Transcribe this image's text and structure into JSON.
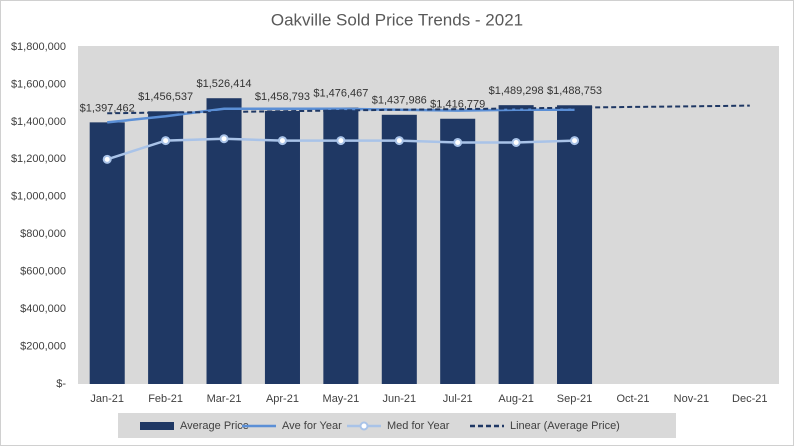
{
  "chart_data": {
    "type": "bar",
    "title": "Oakville Sold Price Trends - 2021",
    "categories": [
      "Jan-21",
      "Feb-21",
      "Mar-21",
      "Apr-21",
      "May-21",
      "Jun-21",
      "Jul-21",
      "Aug-21",
      "Sep-21",
      "Oct-21",
      "Nov-21",
      "Dec-21"
    ],
    "series": [
      {
        "name": "Average Price",
        "type": "bar",
        "color": "#1f3864",
        "values": [
          1397462,
          1456537,
          1526414,
          1458793,
          1476467,
          1437986,
          1416779,
          1489298,
          1488753,
          null,
          null,
          null
        ],
        "value_labels": [
          "$1,397,462",
          "$1,456,537",
          "$1,526,414",
          "$1,458,793",
          "$1,476,467",
          "$1,437,986",
          "$1,416,779",
          "$1,489,298",
          "$1,488,753",
          null,
          null,
          null
        ]
      },
      {
        "name": "Ave for Year",
        "type": "line",
        "color": "#5b8fd6",
        "values": [
          1397462,
          1430000,
          1470000,
          1470000,
          1470000,
          1465000,
          1460000,
          1465000,
          1465000,
          null,
          null,
          null
        ]
      },
      {
        "name": "Med for Year",
        "type": "line",
        "color": "#a9c3e8",
        "marker": true,
        "values": [
          1200000,
          1300000,
          1310000,
          1300000,
          1300000,
          1300000,
          1290000,
          1290000,
          1300000,
          null,
          null,
          null
        ]
      },
      {
        "name": "Linear (Average Price)",
        "type": "line",
        "color": "#1f3864",
        "dash": true,
        "values": [
          1446000,
          1450000,
          1453000,
          1457000,
          1461000,
          1465000,
          1468000,
          1472000,
          1476000,
          1480000,
          1483000,
          1487000
        ]
      }
    ],
    "ylim": [
      0,
      1800000
    ],
    "yticks": [
      {
        "value": 0,
        "label": "$-"
      },
      {
        "value": 200000,
        "label": "$200,000"
      },
      {
        "value": 400000,
        "label": "$400,000"
      },
      {
        "value": 600000,
        "label": "$600,000"
      },
      {
        "value": 800000,
        "label": "$800,000"
      },
      {
        "value": 1000000,
        "label": "$1,000,000"
      },
      {
        "value": 1200000,
        "label": "$1,200,000"
      },
      {
        "value": 1400000,
        "label": "$1,400,000"
      },
      {
        "value": 1600000,
        "label": "$1,600,000"
      },
      {
        "value": 1800000,
        "label": "$1,800,000"
      }
    ],
    "grid": false,
    "legend": "bottom"
  }
}
